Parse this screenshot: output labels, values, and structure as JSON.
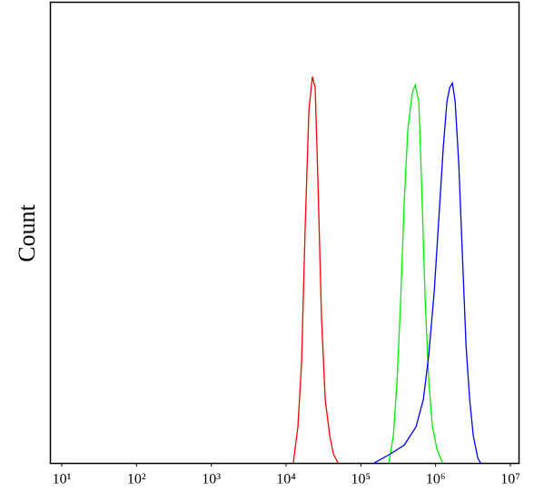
{
  "chart_data": {
    "type": "line",
    "y_label": "Count",
    "xscale": "log",
    "xlim": [
      10,
      10000000
    ],
    "ylim": [
      0,
      100
    ],
    "xticks": [
      {
        "value": 10,
        "label": "10¹"
      },
      {
        "value": 100,
        "label": "10²"
      },
      {
        "value": 1000,
        "label": "10³"
      },
      {
        "value": 10000,
        "label": "10⁴"
      },
      {
        "value": 100000,
        "label": "10⁵"
      },
      {
        "value": 1000000,
        "label": "10⁶"
      },
      {
        "value": 10000000,
        "label": "10⁷"
      }
    ],
    "series": [
      {
        "color": "#ff0000",
        "x": [
          12500,
          14400,
          16100,
          18000,
          20200,
          22500,
          24500,
          26700,
          29800,
          33400,
          38400,
          42900,
          49400
        ],
        "values": [
          0,
          7.9,
          21.7,
          51.2,
          76.8,
          84.1,
          81.7,
          61,
          31.5,
          13.8,
          5.9,
          2,
          0
        ]
      },
      {
        "color": "#00ee00",
        "x": [
          236600,
          272300,
          304600,
          340700,
          381000,
          426000,
          490000,
          533000,
          596000,
          649000,
          725000,
          811000,
          906000,
          1042000,
          1233000
        ],
        "values": [
          0,
          5.9,
          17.7,
          35.4,
          57.1,
          72.8,
          80.7,
          82.3,
          78.7,
          61,
          35.4,
          17.7,
          7.9,
          3,
          0
        ]
      },
      {
        "color": "#0000ff",
        "x": [
          151400,
          250600,
          381000,
          548000,
          685000,
          811000,
          959000,
          1103000,
          1268000,
          1418000,
          1542000,
          1678000,
          1825000,
          2041000,
          2281000,
          2552000,
          2855000,
          3191000,
          3673000,
          3992000
        ],
        "values": [
          0,
          2,
          3.9,
          7.9,
          13.8,
          23.6,
          37.4,
          53.1,
          68.9,
          78.7,
          81.7,
          82.7,
          78.7,
          65,
          45.3,
          25.6,
          13.8,
          5.9,
          1,
          0
        ]
      }
    ]
  }
}
